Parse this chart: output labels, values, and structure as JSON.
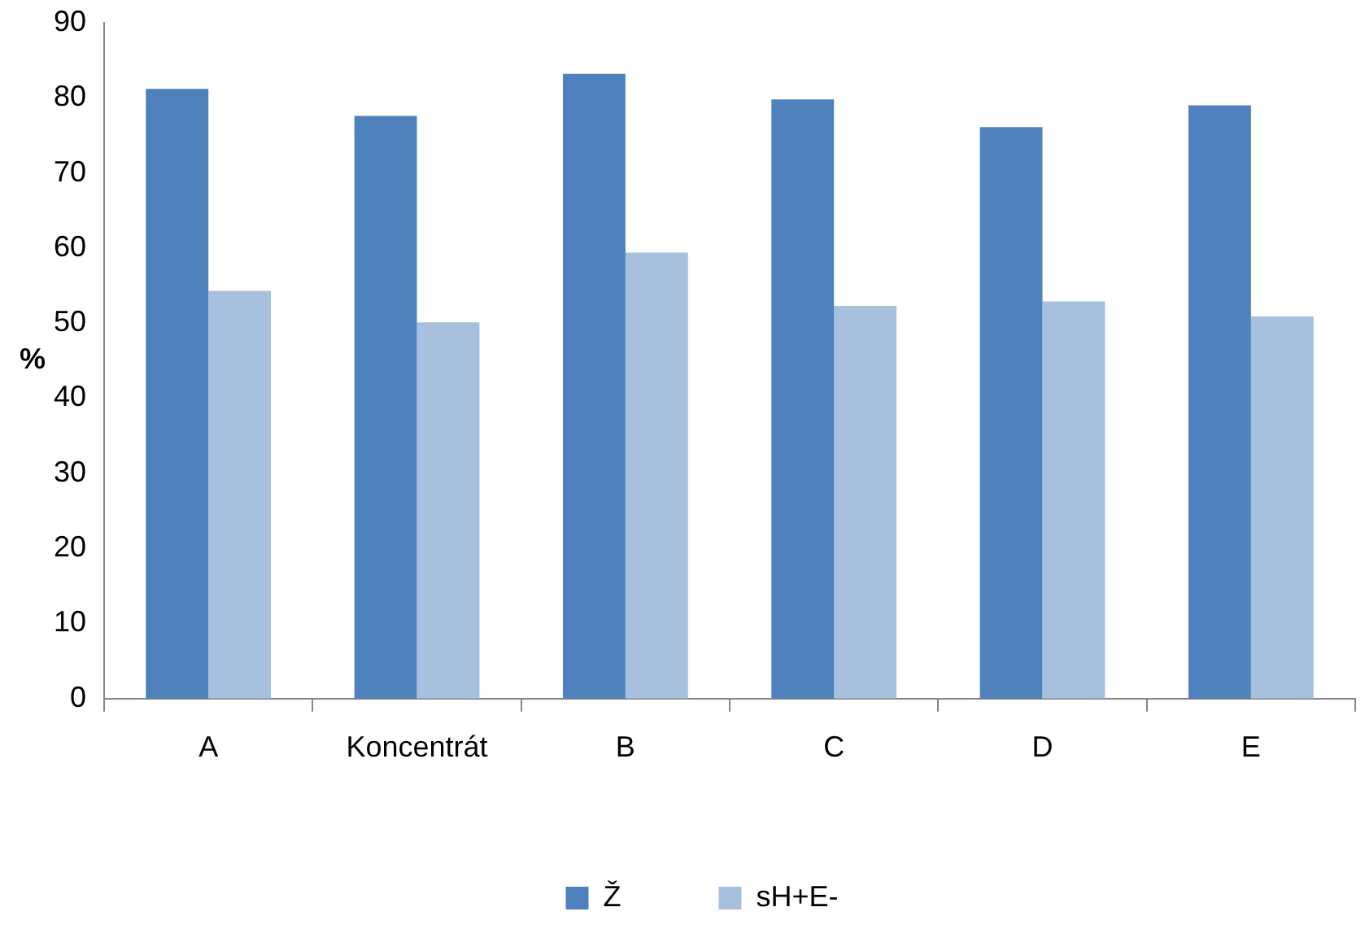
{
  "chart_data": {
    "type": "bar",
    "ylabel": "%",
    "categories": [
      "A",
      "Koncentrát",
      "B",
      "C",
      "D",
      "E"
    ],
    "series": [
      {
        "name": "Ž",
        "color": "#4f81bd",
        "values": [
          81.2,
          77.6,
          83.2,
          79.8,
          76.1,
          79.0
        ]
      },
      {
        "name": "sH+E-",
        "color": "#a7c0de",
        "values": [
          54.3,
          50.1,
          59.4,
          52.3,
          52.9,
          50.9
        ]
      }
    ],
    "ylim": [
      0,
      90
    ],
    "yticks": [
      0,
      10,
      20,
      30,
      40,
      50,
      60,
      70,
      80,
      90
    ],
    "legend": "bottom"
  }
}
